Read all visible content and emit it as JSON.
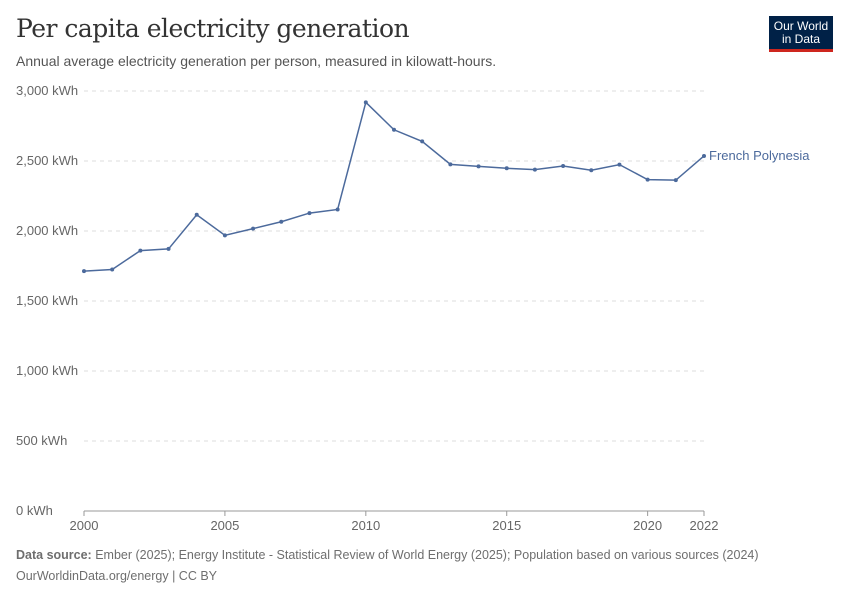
{
  "header": {
    "title": "Per capita electricity generation",
    "subtitle": "Annual average electricity generation per person, measured in kilowatt-hours.",
    "logo": "Our World in Data"
  },
  "footer": {
    "source_label": "Data source:",
    "source": "Ember (2025); Energy Institute - Statistical Review of World Energy (2025); Population based on various sources (2024)",
    "url": "OurWorldinData.org/energy | CC BY"
  },
  "chart_data": {
    "type": "line",
    "title": "Per capita electricity generation",
    "xlabel": "",
    "ylabel": "",
    "xlim": [
      2000,
      2022
    ],
    "ylim": [
      0,
      3000
    ],
    "grid": true,
    "yticks": [
      {
        "v": 0,
        "label": "0 kWh"
      },
      {
        "v": 500,
        "label": "500 kWh"
      },
      {
        "v": 1000,
        "label": "1,000 kWh"
      },
      {
        "v": 1500,
        "label": "1,500 kWh"
      },
      {
        "v": 2000,
        "label": "2,000 kWh"
      },
      {
        "v": 2500,
        "label": "2,500 kWh"
      },
      {
        "v": 3000,
        "label": "3,000 kWh"
      }
    ],
    "xticks": [
      "2000",
      "2005",
      "2010",
      "2015",
      "2020",
      "2022"
    ],
    "series": [
      {
        "name": "French Polynesia",
        "color": "#4c6a9c",
        "x": [
          2000,
          2001,
          2002,
          2003,
          2004,
          2005,
          2006,
          2007,
          2008,
          2009,
          2010,
          2011,
          2012,
          2013,
          2014,
          2015,
          2016,
          2017,
          2018,
          2019,
          2020,
          2021,
          2022
        ],
        "values": [
          1713,
          1725,
          1860,
          1872,
          2116,
          1969,
          2017,
          2066,
          2128,
          2154,
          2919,
          2723,
          2640,
          2476,
          2462,
          2448,
          2438,
          2464,
          2434,
          2474,
          2367,
          2363,
          2536
        ]
      }
    ]
  }
}
